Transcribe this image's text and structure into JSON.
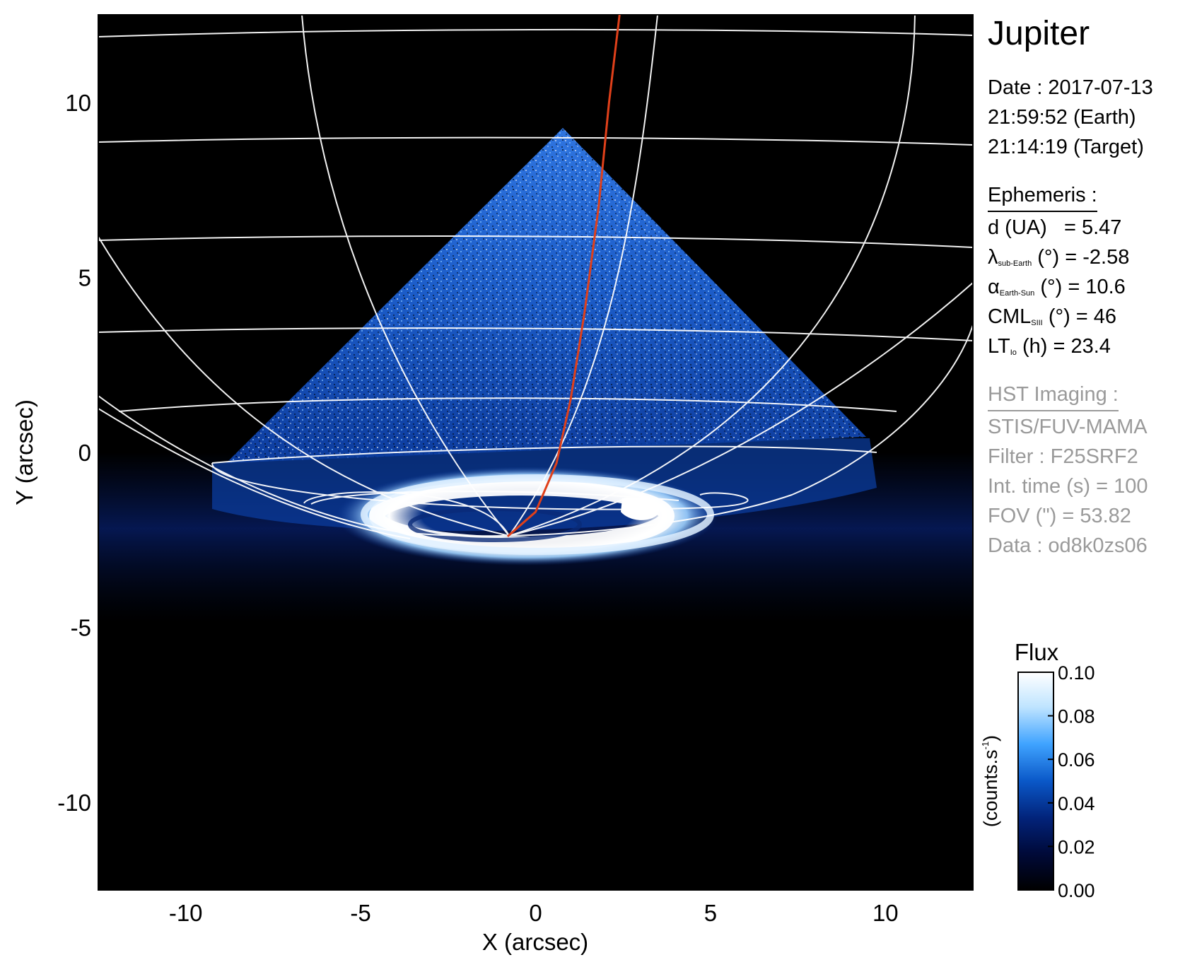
{
  "chart_data": {
    "type": "heatmap",
    "title": "Jupiter",
    "xlabel": "X (arcsec)",
    "ylabel": "Y (arcsec)",
    "xlim": [
      -12.5,
      12.5
    ],
    "ylim": [
      -12.5,
      12.5
    ],
    "xticks": [
      -10,
      -5,
      0,
      5,
      10
    ],
    "yticks": [
      -10,
      -5,
      0,
      5,
      10
    ],
    "xtick_labels": [
      "-10",
      "-5",
      "0",
      "5",
      "10"
    ],
    "ytick_labels": [
      "-10",
      "-5",
      "0",
      "5",
      "10"
    ],
    "grid": "planetographic latitude/longitude overlay",
    "colorbar": {
      "title": "Flux",
      "unit_label": "(counts.s",
      "unit_exp": "-1",
      "unit_close": ")",
      "range": [
        0.0,
        0.1
      ],
      "ticks": [
        0.1,
        0.08,
        0.06,
        0.04,
        0.02,
        0.0
      ],
      "tick_labels": [
        "0.10",
        "0.08",
        "0.06",
        "0.04",
        "0.02",
        "0.00"
      ],
      "colors": [
        "#000000",
        "#000a3a",
        "#02237a",
        "#0a58c8",
        "#3fa3ff",
        "#bfe4ff",
        "#ffffff"
      ]
    },
    "io_footprint_trace": [
      [
        -0.8,
        -2.4
      ],
      [
        0.0,
        -1.7
      ],
      [
        0.6,
        -0.3
      ],
      [
        1.0,
        1.5
      ],
      [
        1.4,
        4.0
      ],
      [
        1.8,
        7.0
      ],
      [
        2.1,
        10.0
      ],
      [
        2.4,
        12.5
      ]
    ],
    "trace_color": "#e0401a",
    "auroral_oval_center": [
      -0.3,
      -1.8
    ]
  },
  "header": {
    "planet": "Jupiter",
    "date_line": "Date : 2017-07-13",
    "earth_time": "21:59:52 (Earth)",
    "target_time": "21:14:19 (Target)"
  },
  "ephemeris": {
    "heading": "Ephemeris :",
    "d_label": "d (UA)",
    "d_value": "= 5.47",
    "lat_symbol": "λ",
    "lat_sub": "sub-Earth",
    "lat_value": "(°) = -2.58",
    "alpha_symbol": "α",
    "alpha_sub": "Earth-Sun",
    "alpha_value": "(°) = 10.6",
    "cml_label": "CML",
    "cml_sub": "SIII",
    "cml_value": "(°) = 46",
    "lt_label": "LT",
    "lt_sub": "Io",
    "lt_value": "(h) = 23.4"
  },
  "hst": {
    "heading": "HST Imaging :",
    "instrument": "STIS/FUV-MAMA",
    "filter": "Filter : F25SRF2",
    "int_time": "Int. time (s) = 100",
    "fov": "FOV (\") = 53.82",
    "data": "Data : od8k0zs06"
  }
}
